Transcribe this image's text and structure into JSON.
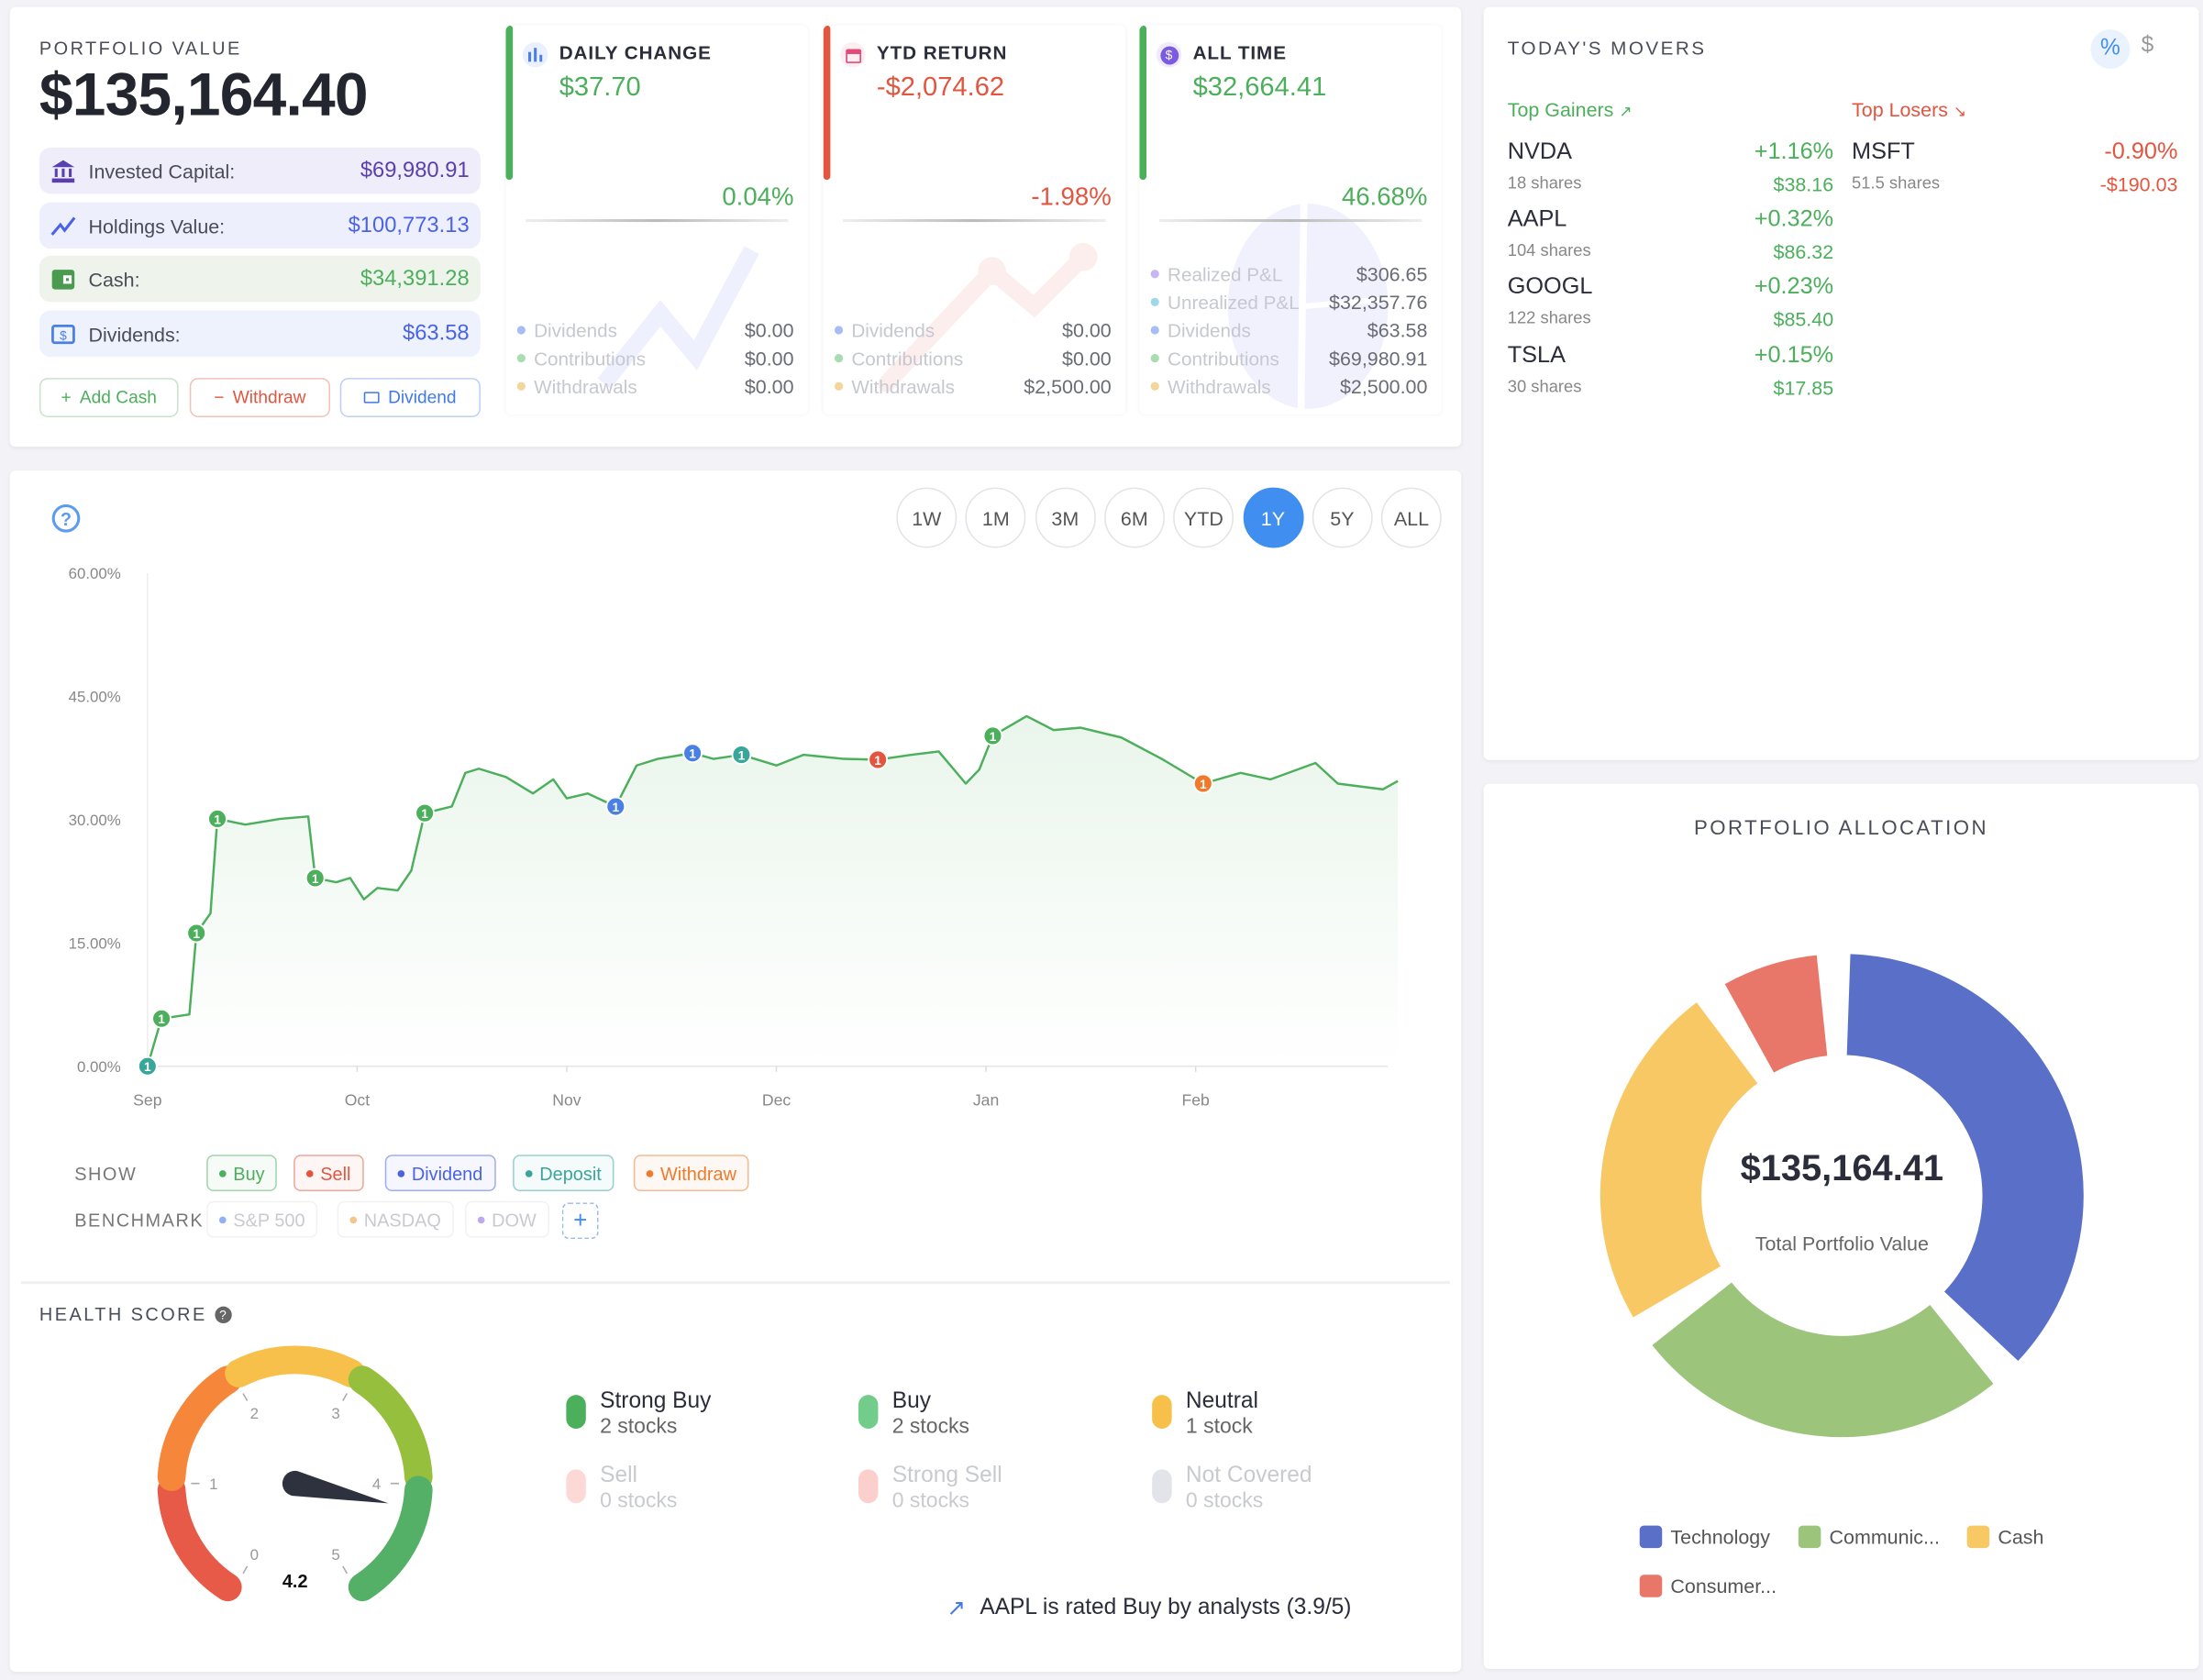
{
  "portfolio": {
    "label": "PORTFOLIO VALUE",
    "value": "$135,164.40",
    "rows": [
      {
        "label": "Invested Capital:",
        "value": "$69,980.91",
        "icon": "bank-icon"
      },
      {
        "label": "Holdings Value:",
        "value": "$100,773.13",
        "icon": "trend-line-icon"
      },
      {
        "label": "Cash:",
        "value": "$34,391.28",
        "icon": "wallet-icon"
      },
      {
        "label": "Dividends:",
        "value": "$63.58",
        "icon": "dollar-bill-icon"
      }
    ],
    "buttons": {
      "add_cash": "Add Cash",
      "withdraw": "Withdraw",
      "dividend": "Dividend"
    }
  },
  "stats": [
    {
      "title": "DAILY CHANGE",
      "value": "$37.70",
      "percent": "0.04%",
      "icon": "bar-chart-icon",
      "items": [
        {
          "label": "Dividends",
          "value": "$0.00"
        },
        {
          "label": "Contributions",
          "value": "$0.00"
        },
        {
          "label": "Withdrawals",
          "value": "$0.00"
        }
      ]
    },
    {
      "title": "YTD RETURN",
      "value": "-$2,074.62",
      "percent": "-1.98%",
      "icon": "calendar-icon",
      "items": [
        {
          "label": "Dividends",
          "value": "$0.00"
        },
        {
          "label": "Contributions",
          "value": "$0.00"
        },
        {
          "label": "Withdrawals",
          "value": "$2,500.00"
        }
      ]
    },
    {
      "title": "ALL TIME",
      "value": "$32,664.41",
      "percent": "46.68%",
      "icon": "dollar-circle-icon",
      "items": [
        {
          "label": "Realized P&L",
          "value": "$306.65"
        },
        {
          "label": "Unrealized P&L",
          "value": "$32,357.76"
        },
        {
          "label": "Dividends",
          "value": "$63.58"
        },
        {
          "label": "Contributions",
          "value": "$69,980.91"
        },
        {
          "label": "Withdrawals",
          "value": "$2,500.00"
        }
      ]
    }
  ],
  "movers": {
    "title": "TODAY'S MOVERS",
    "toggle": {
      "percent": "%",
      "dollar": "$",
      "active": "percent"
    },
    "gainers_label": "Top Gainers",
    "losers_label": "Top Losers",
    "gainers": [
      {
        "ticker": "NVDA",
        "shares": "18 shares",
        "percent": "+1.16%",
        "amount": "$38.16"
      },
      {
        "ticker": "AAPL",
        "shares": "104 shares",
        "percent": "+0.32%",
        "amount": "$86.32"
      },
      {
        "ticker": "GOOGL",
        "shares": "122 shares",
        "percent": "+0.23%",
        "amount": "$85.40"
      },
      {
        "ticker": "TSLA",
        "shares": "30 shares",
        "percent": "+0.15%",
        "amount": "$17.85"
      }
    ],
    "losers": [
      {
        "ticker": "MSFT",
        "shares": "51.5 shares",
        "percent": "-0.90%",
        "amount": "-$190.03"
      }
    ]
  },
  "ranges": {
    "options": [
      "1W",
      "1M",
      "3M",
      "6M",
      "YTD",
      "1Y",
      "5Y",
      "ALL"
    ],
    "active": "1Y"
  },
  "chart_data": {
    "type": "area",
    "ylim": [
      0,
      60
    ],
    "y_ticks": [
      "0.00%",
      "15.00%",
      "30.00%",
      "45.00%",
      "60.00%"
    ],
    "y_tick_values": [
      0,
      15,
      30,
      45,
      60
    ],
    "x_ticks": [
      "Sep",
      "Oct",
      "Nov",
      "Dec",
      "Jan",
      "Feb"
    ],
    "grid": false,
    "color": "#4caf5c",
    "x": [
      "Sep 1",
      "Sep 3",
      "Sep 7",
      "Sep 8",
      "Sep 10",
      "Sep 11",
      "Sep 15",
      "Sep 20",
      "Sep 24",
      "Sep 25",
      "Sep 28",
      "Sep 30",
      "Oct 2",
      "Oct 4",
      "Oct 7",
      "Oct 9",
      "Oct 11",
      "Oct 15",
      "Oct 17",
      "Oct 19",
      "Oct 23",
      "Oct 27",
      "Oct 30",
      "Nov 1",
      "Nov 4",
      "Nov 8",
      "Nov 11",
      "Nov 14",
      "Nov 19",
      "Nov 22",
      "Nov 26",
      "Dec 1",
      "Dec 5",
      "Dec 11",
      "Dec 16",
      "Dec 21",
      "Dec 25",
      "Dec 29",
      "Dec 31",
      "Jan 2",
      "Jan 7",
      "Jan 11",
      "Jan 15",
      "Jan 21",
      "Jan 27",
      "Feb 2",
      "Feb 7",
      "Feb 11",
      "Feb 17",
      "Feb 20",
      "Feb 26",
      "Feb 28"
    ],
    "values": [
      0,
      5.8,
      6.3,
      16.2,
      18.6,
      30.1,
      29.4,
      30.1,
      30.4,
      22.9,
      22.4,
      22.9,
      20.3,
      21.7,
      21.4,
      23.8,
      30.8,
      31.6,
      35.7,
      36.2,
      35.2,
      33.2,
      34.9,
      32.6,
      33.2,
      31.6,
      36.6,
      37.4,
      38.1,
      37.4,
      37.9,
      36.6,
      37.9,
      37.4,
      37.3,
      37.9,
      38.3,
      34.4,
      36.1,
      40.2,
      42.6,
      40.9,
      41.2,
      40.0,
      37.4,
      34.4,
      35.7,
      34.9,
      36.9,
      34.4,
      33.7,
      34.7
    ],
    "events": [
      {
        "date": "Sep 1",
        "type": "deposit",
        "label": "1"
      },
      {
        "date": "Sep 3",
        "type": "buy",
        "label": "1"
      },
      {
        "date": "Sep 8",
        "type": "buy",
        "label": "1"
      },
      {
        "date": "Sep 11",
        "type": "buy",
        "label": "1"
      },
      {
        "date": "Sep 25",
        "type": "buy",
        "label": "1"
      },
      {
        "date": "Oct 11",
        "type": "buy",
        "label": "1"
      },
      {
        "date": "Nov 8",
        "type": "dividend",
        "label": "1"
      },
      {
        "date": "Nov 19",
        "type": "dividend",
        "label": "1"
      },
      {
        "date": "Nov 26",
        "type": "deposit",
        "label": "1"
      },
      {
        "date": "Dec 16",
        "type": "sell",
        "label": "1"
      },
      {
        "date": "Jan 2",
        "type": "buy",
        "label": "1"
      },
      {
        "date": "Feb 2",
        "type": "withdraw",
        "label": "1"
      }
    ],
    "event_colors": {
      "buy": "#4caf5c",
      "sell": "#e2553f",
      "dividend": "#4a7fe6",
      "deposit": "#3aa69b",
      "withdraw": "#f07a2a"
    }
  },
  "filters": {
    "show_label": "SHOW",
    "show": [
      {
        "label": "Buy",
        "color": "#4caf5c"
      },
      {
        "label": "Sell",
        "color": "#e2553f"
      },
      {
        "label": "Dividend",
        "color": "#4a63e6"
      },
      {
        "label": "Deposit",
        "color": "#3aa69b"
      },
      {
        "label": "Withdraw",
        "color": "#f07a2a"
      }
    ],
    "benchmark_label": "BENCHMARK",
    "benchmarks": [
      {
        "label": "S&P 500",
        "color": "#8fb0f5"
      },
      {
        "label": "NASDAQ",
        "color": "#f5c68a"
      },
      {
        "label": "DOW",
        "color": "#c0a8f0"
      }
    ],
    "add": "+"
  },
  "health": {
    "title": "HEALTH SCORE",
    "score": "4.2",
    "score_value": 4.2,
    "scale_labels": [
      "0",
      "1",
      "2",
      "3",
      "4",
      "5"
    ],
    "legend": [
      {
        "label": "Strong Buy",
        "count": "2 stocks",
        "color": "#4caf5c"
      },
      {
        "label": "Buy",
        "count": "2 stocks",
        "color": "#72cc8a"
      },
      {
        "label": "Neutral",
        "count": "1 stock",
        "color": "#f7c04a"
      },
      {
        "label": "Sell",
        "count": "0 stocks",
        "color": "#fcd9d5"
      },
      {
        "label": "Strong Sell",
        "count": "0 stocks",
        "color": "#fbcfcb"
      },
      {
        "label": "Not Covered",
        "count": "0 stocks",
        "color": "#e3e3ea"
      }
    ],
    "note": "AAPL is rated Buy by analysts (3.9/5)"
  },
  "allocation": {
    "title": "PORTFOLIO ALLOCATION",
    "total": "$135,164.41",
    "total_label": "Total Portfolio Value",
    "segments": [
      {
        "label": "Technology",
        "percent": 40.0,
        "color": "#5a6fc8"
      },
      {
        "label": "Communic...",
        "percent": 27.6,
        "color": "#9cc47a"
      },
      {
        "label": "Cash",
        "percent": 25.4,
        "color": "#f8c865"
      },
      {
        "label": "Consumer...",
        "percent": 7.0,
        "color": "#e8776a"
      }
    ]
  }
}
